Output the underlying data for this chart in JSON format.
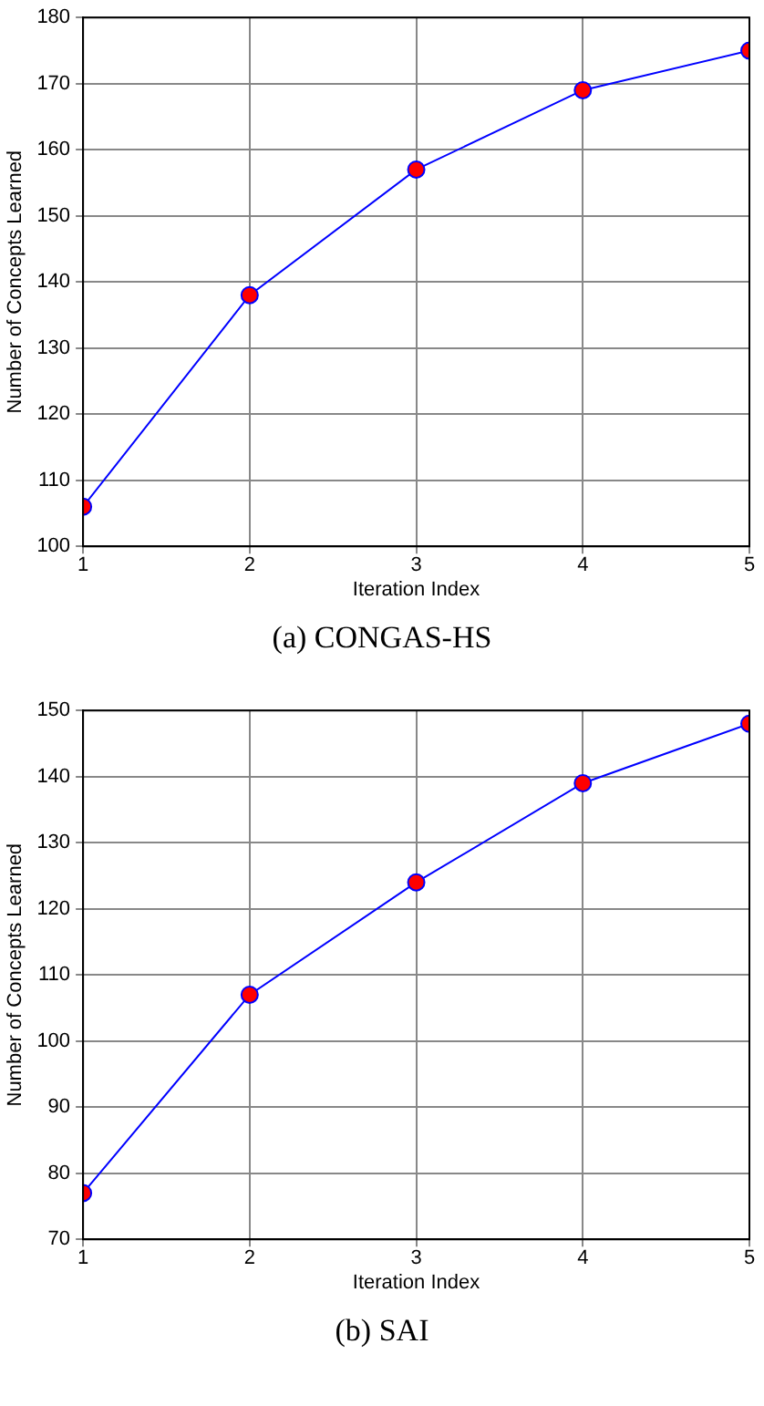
{
  "chart_data": [
    {
      "type": "line",
      "title": "(a) CONGAS-HS",
      "xlabel": "Iteration Index",
      "ylabel": "Number of Concepts Learned",
      "x": [
        1,
        2,
        3,
        4,
        5
      ],
      "series": [
        {
          "color": "#0000ff",
          "values": [
            106,
            138,
            157,
            169,
            175
          ]
        }
      ],
      "xlim": [
        1,
        5
      ],
      "xticks": [
        1,
        2,
        3,
        4,
        5
      ],
      "ylim": [
        100,
        180
      ],
      "yticks": [
        100,
        110,
        120,
        130,
        140,
        150,
        160,
        170,
        180
      ],
      "grid": true,
      "marker": "circle",
      "legend": false
    },
    {
      "type": "line",
      "title": "(b) SAI",
      "xlabel": "Iteration Index",
      "ylabel": "Number of Concepts Learned",
      "x": [
        1,
        2,
        3,
        4,
        5
      ],
      "series": [
        {
          "color": "#0000ff",
          "values": [
            77,
            107,
            124,
            139,
            148
          ]
        }
      ],
      "xlim": [
        1,
        5
      ],
      "xticks": [
        1,
        2,
        3,
        4,
        5
      ],
      "ylim": [
        70,
        150
      ],
      "yticks": [
        70,
        80,
        90,
        100,
        110,
        120,
        130,
        140,
        150
      ],
      "grid": true,
      "marker": "circle",
      "legend": false
    }
  ]
}
